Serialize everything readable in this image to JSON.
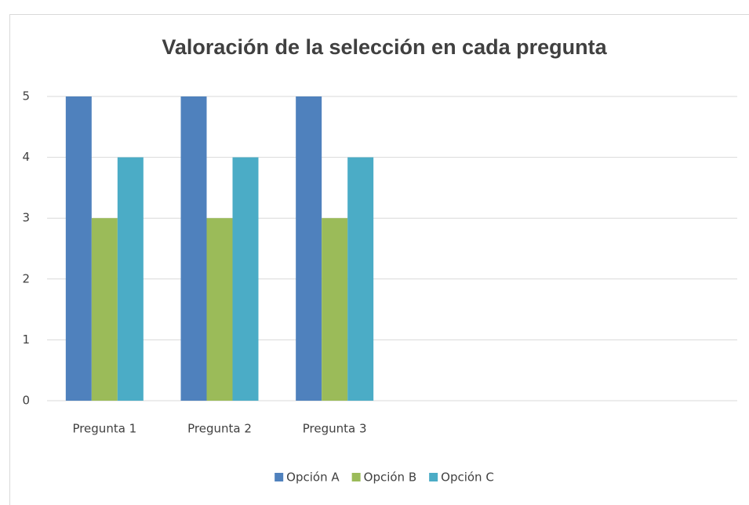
{
  "chart_data": {
    "type": "bar",
    "title": "Valoración de la selección en cada pregunta",
    "categories": [
      "Pregunta 1",
      "Pregunta 2",
      "Pregunta 3",
      null,
      null,
      null
    ],
    "series": [
      {
        "name": "Opción A",
        "color": "#4f81bd",
        "values": [
          5,
          5,
          5,
          null,
          null,
          null
        ]
      },
      {
        "name": "Opción B",
        "color": "#9bbb59",
        "values": [
          3,
          3,
          3,
          null,
          null,
          null
        ]
      },
      {
        "name": "Opción C",
        "color": "#4bacc6",
        "values": [
          4,
          4,
          4,
          null,
          null,
          null
        ]
      }
    ],
    "ylim": [
      0,
      5
    ],
    "yticks": [
      0,
      1,
      2,
      3,
      4,
      5
    ],
    "grid": true,
    "legend": "bottom"
  }
}
